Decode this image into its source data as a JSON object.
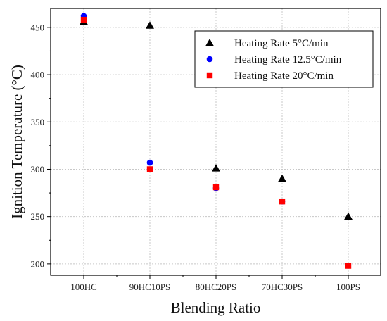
{
  "chart_data": {
    "type": "scatter",
    "title": "",
    "xlabel": "Blending Ratio",
    "ylabel": "Ignition Temperature (°C)",
    "categories": [
      "100HC",
      "90HC10PS",
      "80HC20PS",
      "70HC30PS",
      "100PS"
    ],
    "ylim": [
      188,
      470
    ],
    "yticks": [
      200,
      250,
      300,
      350,
      400,
      450
    ],
    "grid": true,
    "legend_position": "top-right",
    "series": [
      {
        "name": "Heating Rate 5°C/min",
        "marker": "triangle",
        "color": "#000000",
        "values": [
          456,
          452,
          301,
          290,
          250
        ]
      },
      {
        "name": "Heating Rate 12.5°C/min",
        "marker": "circle",
        "color": "#0000ff",
        "values": [
          462,
          307,
          280,
          266,
          null
        ]
      },
      {
        "name": "Heating Rate 20°C/min",
        "marker": "square",
        "color": "#ff0000",
        "values": [
          458,
          300,
          281,
          266,
          198
        ]
      }
    ]
  }
}
